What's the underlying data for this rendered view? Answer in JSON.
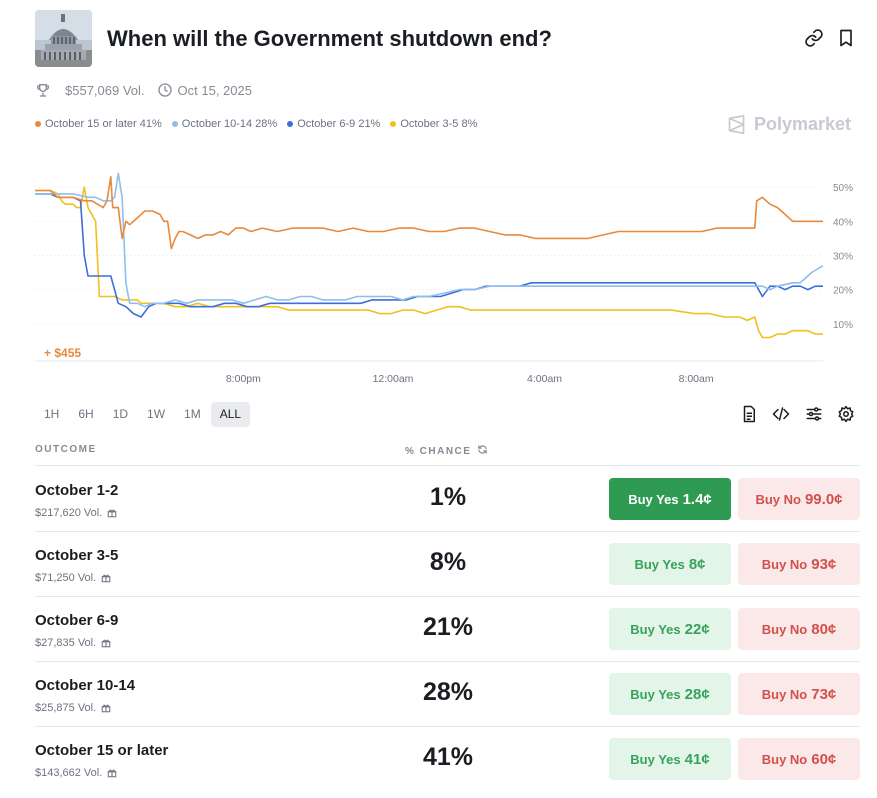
{
  "market": {
    "title": "When will the Government shutdown end?",
    "volume": "$557,069 Vol.",
    "end_date": "Oct 15, 2025",
    "brand": "Polymarket"
  },
  "legend": [
    {
      "label": "October 15 or later 41%",
      "color": "#e8893c"
    },
    {
      "label": "October 10-14 28%",
      "color": "#8fbdee"
    },
    {
      "label": "October 6-9 21%",
      "color": "#3d6fd8"
    },
    {
      "label": "October 3-5 8%",
      "color": "#f0c020"
    }
  ],
  "chart": {
    "profit_label": "+ $455"
  },
  "chart_data": {
    "type": "line",
    "x_ticks": [
      "8:00pm",
      "12:00am",
      "4:00am",
      "8:00am"
    ],
    "y_ticks": [
      "50%",
      "40%",
      "30%",
      "20%",
      "10%"
    ],
    "ylim": [
      0,
      55
    ],
    "grid": true,
    "legend_position": "top-left",
    "series": [
      {
        "name": "October 15 or later",
        "color": "#e8893c",
        "points": [
          [
            0,
            49
          ],
          [
            4,
            49
          ],
          [
            6,
            47
          ],
          [
            10,
            47
          ],
          [
            13,
            46
          ],
          [
            15,
            46
          ],
          [
            18,
            44
          ],
          [
            19,
            46
          ],
          [
            20,
            53
          ],
          [
            20.5,
            44
          ],
          [
            22,
            44
          ],
          [
            23,
            35
          ],
          [
            24,
            40
          ],
          [
            25,
            39
          ],
          [
            27,
            41
          ],
          [
            29,
            43
          ],
          [
            31,
            43
          ],
          [
            33,
            42
          ],
          [
            34,
            40
          ],
          [
            35,
            40
          ],
          [
            36,
            32
          ],
          [
            37,
            35
          ],
          [
            38,
            37
          ],
          [
            39,
            37
          ],
          [
            41,
            36
          ],
          [
            43,
            35
          ],
          [
            45,
            36
          ],
          [
            47,
            36
          ],
          [
            49,
            37
          ],
          [
            51,
            36
          ],
          [
            53,
            38
          ],
          [
            55,
            38
          ],
          [
            57,
            37
          ],
          [
            60,
            38
          ],
          [
            64,
            37
          ],
          [
            68,
            38
          ],
          [
            72,
            38
          ],
          [
            76,
            38
          ],
          [
            80,
            37
          ],
          [
            84,
            38
          ],
          [
            88,
            37
          ],
          [
            92,
            37
          ],
          [
            96,
            38
          ],
          [
            100,
            38
          ],
          [
            104,
            37
          ],
          [
            108,
            37
          ],
          [
            112,
            38
          ],
          [
            116,
            38
          ],
          [
            120,
            37
          ],
          [
            124,
            36
          ],
          [
            128,
            36
          ],
          [
            132,
            35
          ],
          [
            136,
            35
          ],
          [
            140,
            35
          ],
          [
            146,
            35
          ],
          [
            150,
            36
          ],
          [
            154,
            37
          ],
          [
            158,
            37
          ],
          [
            164,
            37
          ],
          [
            170,
            37
          ],
          [
            176,
            37
          ],
          [
            180,
            38
          ],
          [
            186,
            38
          ],
          [
            190,
            38
          ],
          [
            190.5,
            46
          ],
          [
            192,
            47
          ],
          [
            194,
            45
          ],
          [
            196,
            44
          ],
          [
            198,
            42
          ],
          [
            200,
            40
          ],
          [
            204,
            40
          ],
          [
            208,
            40
          ]
        ]
      },
      {
        "name": "October 10-14",
        "color": "#8fbdee",
        "points": [
          [
            0,
            48
          ],
          [
            6,
            48
          ],
          [
            10,
            48
          ],
          [
            14,
            47
          ],
          [
            16,
            47
          ],
          [
            18,
            46
          ],
          [
            20,
            46
          ],
          [
            21,
            47
          ],
          [
            22,
            54
          ],
          [
            23,
            47
          ],
          [
            24,
            22
          ],
          [
            25,
            16
          ],
          [
            27,
            16
          ],
          [
            29,
            15
          ],
          [
            31,
            16
          ],
          [
            34,
            16
          ],
          [
            37,
            17
          ],
          [
            40,
            16
          ],
          [
            43,
            17
          ],
          [
            46,
            17
          ],
          [
            49,
            17
          ],
          [
            52,
            17
          ],
          [
            55,
            16
          ],
          [
            58,
            17
          ],
          [
            61,
            18
          ],
          [
            64,
            17
          ],
          [
            67,
            17
          ],
          [
            70,
            18
          ],
          [
            73,
            18
          ],
          [
            76,
            17
          ],
          [
            79,
            17
          ],
          [
            82,
            17
          ],
          [
            85,
            18
          ],
          [
            88,
            18
          ],
          [
            91,
            18
          ],
          [
            94,
            18
          ],
          [
            97,
            17
          ],
          [
            100,
            18
          ],
          [
            104,
            18
          ],
          [
            108,
            19
          ],
          [
            112,
            20
          ],
          [
            116,
            20
          ],
          [
            120,
            21
          ],
          [
            124,
            21
          ],
          [
            128,
            21
          ],
          [
            132,
            21
          ],
          [
            136,
            21
          ],
          [
            140,
            21
          ],
          [
            146,
            21
          ],
          [
            150,
            21
          ],
          [
            156,
            21
          ],
          [
            162,
            21
          ],
          [
            168,
            21
          ],
          [
            174,
            21
          ],
          [
            180,
            21
          ],
          [
            186,
            21
          ],
          [
            192,
            21
          ],
          [
            194,
            20
          ],
          [
            196,
            21
          ],
          [
            200,
            22
          ],
          [
            202,
            22
          ],
          [
            203,
            23
          ],
          [
            205,
            25
          ],
          [
            208,
            27
          ]
        ]
      },
      {
        "name": "October 6-9",
        "color": "#3d6fd8",
        "points": [
          [
            0,
            48
          ],
          [
            4,
            48
          ],
          [
            6,
            47
          ],
          [
            10,
            47
          ],
          [
            12,
            46
          ],
          [
            13,
            30
          ],
          [
            14,
            24
          ],
          [
            16,
            24
          ],
          [
            18,
            24
          ],
          [
            20,
            24
          ],
          [
            22,
            16
          ],
          [
            24,
            15
          ],
          [
            26,
            13
          ],
          [
            28,
            12
          ],
          [
            30,
            15
          ],
          [
            32,
            16
          ],
          [
            35,
            16
          ],
          [
            38,
            16
          ],
          [
            41,
            15
          ],
          [
            44,
            15
          ],
          [
            47,
            15
          ],
          [
            50,
            16
          ],
          [
            53,
            16
          ],
          [
            56,
            15
          ],
          [
            59,
            15
          ],
          [
            62,
            16
          ],
          [
            65,
            16
          ],
          [
            68,
            16
          ],
          [
            71,
            16
          ],
          [
            74,
            16
          ],
          [
            77,
            16
          ],
          [
            80,
            16
          ],
          [
            83,
            16
          ],
          [
            86,
            16
          ],
          [
            89,
            17
          ],
          [
            92,
            17
          ],
          [
            95,
            17
          ],
          [
            98,
            17
          ],
          [
            101,
            18
          ],
          [
            104,
            18
          ],
          [
            107,
            18
          ],
          [
            110,
            19
          ],
          [
            113,
            20
          ],
          [
            116,
            20
          ],
          [
            119,
            21
          ],
          [
            122,
            21
          ],
          [
            125,
            21
          ],
          [
            128,
            21
          ],
          [
            131,
            22
          ],
          [
            134,
            22
          ],
          [
            137,
            22
          ],
          [
            140,
            22
          ],
          [
            146,
            22
          ],
          [
            150,
            22
          ],
          [
            156,
            22
          ],
          [
            162,
            22
          ],
          [
            168,
            22
          ],
          [
            174,
            22
          ],
          [
            180,
            22
          ],
          [
            186,
            22
          ],
          [
            190,
            22
          ],
          [
            192,
            18
          ],
          [
            194,
            21
          ],
          [
            196,
            21
          ],
          [
            198,
            20
          ],
          [
            200,
            21
          ],
          [
            202,
            21
          ],
          [
            204,
            20
          ],
          [
            206,
            21
          ],
          [
            208,
            21
          ]
        ]
      },
      {
        "name": "October 3-5",
        "color": "#f0c020",
        "points": [
          [
            0,
            49
          ],
          [
            4,
            49
          ],
          [
            6,
            48
          ],
          [
            7,
            46
          ],
          [
            8,
            45
          ],
          [
            10,
            45
          ],
          [
            11,
            44
          ],
          [
            12,
            44
          ],
          [
            13,
            50
          ],
          [
            14,
            44
          ],
          [
            16,
            40
          ],
          [
            17,
            18
          ],
          [
            19,
            18
          ],
          [
            21,
            18
          ],
          [
            23,
            17
          ],
          [
            25,
            17
          ],
          [
            27,
            17
          ],
          [
            28,
            16
          ],
          [
            30,
            16
          ],
          [
            32,
            16
          ],
          [
            34,
            16
          ],
          [
            37,
            15
          ],
          [
            40,
            15
          ],
          [
            43,
            16
          ],
          [
            46,
            15
          ],
          [
            49,
            15
          ],
          [
            52,
            15
          ],
          [
            55,
            15
          ],
          [
            58,
            15
          ],
          [
            61,
            15
          ],
          [
            64,
            15
          ],
          [
            67,
            14
          ],
          [
            70,
            14
          ],
          [
            73,
            14
          ],
          [
            76,
            14
          ],
          [
            79,
            14
          ],
          [
            82,
            14
          ],
          [
            85,
            14
          ],
          [
            88,
            14
          ],
          [
            91,
            13
          ],
          [
            94,
            13
          ],
          [
            97,
            14
          ],
          [
            100,
            14
          ],
          [
            103,
            13
          ],
          [
            106,
            14
          ],
          [
            109,
            15
          ],
          [
            112,
            15
          ],
          [
            115,
            14
          ],
          [
            118,
            14
          ],
          [
            121,
            14
          ],
          [
            124,
            14
          ],
          [
            127,
            14
          ],
          [
            130,
            14
          ],
          [
            133,
            14
          ],
          [
            136,
            14
          ],
          [
            140,
            14
          ],
          [
            146,
            14
          ],
          [
            150,
            14
          ],
          [
            156,
            14
          ],
          [
            162,
            14
          ],
          [
            168,
            14
          ],
          [
            174,
            13
          ],
          [
            178,
            13
          ],
          [
            182,
            12
          ],
          [
            186,
            12
          ],
          [
            188,
            11
          ],
          [
            190,
            12
          ],
          [
            191,
            8
          ],
          [
            192,
            6
          ],
          [
            194,
            6
          ],
          [
            196,
            7
          ],
          [
            198,
            7
          ],
          [
            200,
            8
          ],
          [
            202,
            8
          ],
          [
            204,
            8
          ],
          [
            206,
            7
          ],
          [
            208,
            7
          ]
        ]
      }
    ]
  },
  "ranges": [
    "1H",
    "6H",
    "1D",
    "1W",
    "1M",
    "ALL"
  ],
  "active_range": "ALL",
  "table": {
    "col_outcome": "OUTCOME",
    "col_chance": "% CHANCE",
    "rows": [
      {
        "name": "October 1-2",
        "volume": "$217,620 Vol.",
        "chance": "1%",
        "yes_label": "Buy Yes",
        "yes_price": "1.4¢",
        "no_label": "Buy No",
        "no_price": "99.0¢",
        "yes_primary": true
      },
      {
        "name": "October 3-5",
        "volume": "$71,250 Vol.",
        "chance": "8%",
        "yes_label": "Buy Yes",
        "yes_price": "8¢",
        "no_label": "Buy No",
        "no_price": "93¢",
        "yes_primary": false
      },
      {
        "name": "October 6-9",
        "volume": "$27,835 Vol.",
        "chance": "21%",
        "yes_label": "Buy Yes",
        "yes_price": "22¢",
        "no_label": "Buy No",
        "no_price": "80¢",
        "yes_primary": false
      },
      {
        "name": "October 10-14",
        "volume": "$25,875 Vol.",
        "chance": "28%",
        "yes_label": "Buy Yes",
        "yes_price": "28¢",
        "no_label": "Buy No",
        "no_price": "73¢",
        "yes_primary": false
      },
      {
        "name": "October 15 or later",
        "volume": "$143,662 Vol.",
        "chance": "41%",
        "yes_label": "Buy Yes",
        "yes_price": "41¢",
        "no_label": "Buy No",
        "no_price": "60¢",
        "yes_primary": false
      }
    ]
  },
  "icons": {
    "link": "link-icon",
    "bookmark": "bookmark-icon",
    "trophy": "trophy-icon",
    "clock": "clock-icon",
    "document": "document-icon",
    "code": "code-icon",
    "sliders": "sliders-icon",
    "gear": "gear-icon",
    "refresh": "refresh-icon",
    "gift": "gift-icon"
  }
}
